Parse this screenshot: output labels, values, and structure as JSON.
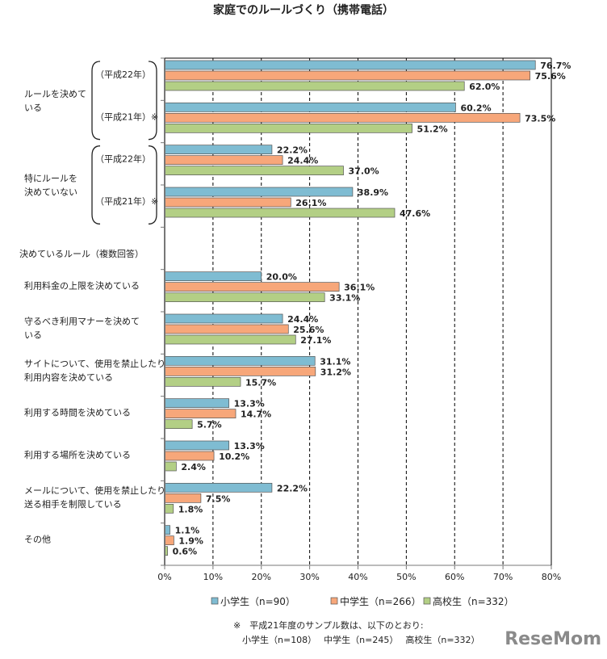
{
  "chart_data": {
    "type": "bar",
    "orientation": "horizontal",
    "title": "家庭でのルールづくり（携帯電話）",
    "xlim": [
      0,
      80
    ],
    "xticks": [
      "0%",
      "10%",
      "20%",
      "30%",
      "40%",
      "50%",
      "60%",
      "70%",
      "80%"
    ],
    "grid": "vertical dashed",
    "legend_position": "bottom",
    "series": [
      {
        "name": "小学生（n=90）",
        "color": "#7fbcd2"
      },
      {
        "name": "中学生（n=266）",
        "color": "#f7a77a"
      },
      {
        "name": "高校生（n=332）",
        "color": "#b3cf85"
      }
    ],
    "rows": [
      {
        "year": "（平成22年）",
        "values": [
          76.7,
          75.6,
          62.0
        ],
        "labels": [
          "76.7%",
          "75.6%",
          "62.0%"
        ]
      },
      {
        "year": "（平成21年）※",
        "values": [
          60.2,
          73.5,
          51.2
        ],
        "labels": [
          "60.2%",
          "73.5%",
          "51.2%"
        ]
      },
      {
        "year": "（平成22年）",
        "values": [
          22.2,
          24.4,
          37.0
        ],
        "labels": [
          "22.2%",
          "24.4%",
          "37.0%"
        ]
      },
      {
        "year": "（平成21年）※",
        "values": [
          38.9,
          26.1,
          47.6
        ],
        "labels": [
          "38.9%",
          "26.1%",
          "47.6%"
        ]
      },
      {
        "heading": "決めているルール（複数回答）"
      },
      {
        "category": [
          "利用料金の上限を決めている"
        ],
        "values": [
          20.0,
          36.1,
          33.1
        ],
        "labels": [
          "20.0%",
          "36.1%",
          "33.1%"
        ]
      },
      {
        "category": [
          "守るべき利用マナーを決めて",
          "いる"
        ],
        "values": [
          24.4,
          25.6,
          27.1
        ],
        "labels": [
          "24.4%",
          "25.6%",
          "27.1%"
        ]
      },
      {
        "category": [
          "サイトについて、使用を禁止したり",
          "利用内容を決めている"
        ],
        "values": [
          31.1,
          31.2,
          15.7
        ],
        "labels": [
          "31.1%",
          "31.2%",
          "15.7%"
        ]
      },
      {
        "category": [
          "利用する時間を決めている"
        ],
        "values": [
          13.3,
          14.7,
          5.7
        ],
        "labels": [
          "13.3%",
          "14.7%",
          "5.7%"
        ]
      },
      {
        "category": [
          "利用する場所を決めている"
        ],
        "values": [
          13.3,
          10.2,
          2.4
        ],
        "labels": [
          "13.3%",
          "10.2%",
          "2.4%"
        ]
      },
      {
        "category": [
          "メールについて、使用を禁止したり",
          "送る相手を制限している"
        ],
        "values": [
          22.2,
          7.5,
          1.8
        ],
        "labels": [
          "22.2%",
          "7.5%",
          "1.8%"
        ]
      },
      {
        "category": [
          "その他"
        ],
        "values": [
          1.1,
          1.9,
          0.6
        ],
        "labels": [
          "1.1%",
          "1.9%",
          "0.6%"
        ]
      }
    ],
    "group_labels": [
      {
        "lines": [
          "ルールを決めて",
          "いる"
        ]
      },
      {
        "lines": [
          "特にルールを",
          "決めていない"
        ]
      }
    ],
    "footnote": [
      "※　平成21年度のサンプル数は、以下のとおり:",
      "小学生（n=108）　 中学生（n=245）　 高校生（n=332）"
    ]
  },
  "watermark": "ReseMom"
}
